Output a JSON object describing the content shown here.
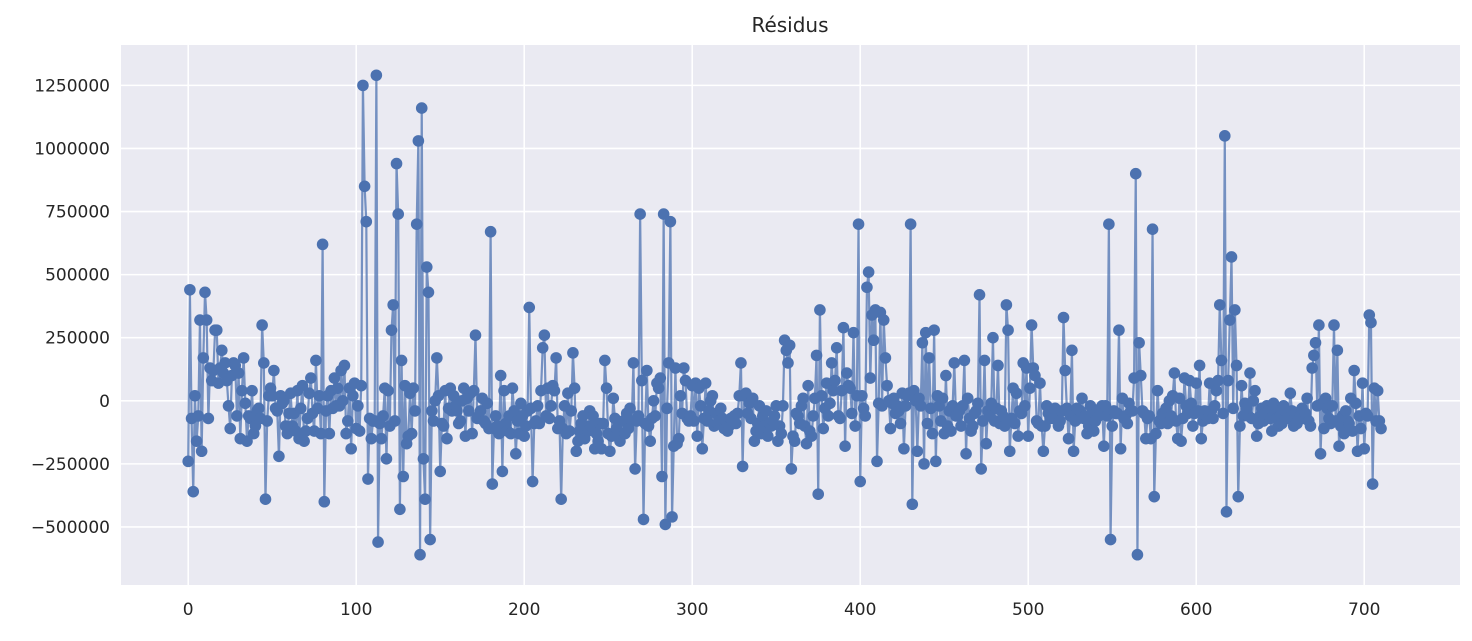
{
  "chart_data": {
    "type": "line",
    "title": "Résidus",
    "xlabel": "",
    "ylabel": "",
    "xlim": [
      -40,
      757
    ],
    "ylim": [
      -730000,
      1410000
    ],
    "grid": true,
    "legend": "none",
    "background_color": "#EAEAF2",
    "grid_color": "#FFFFFF",
    "line_color": "#4C72B0",
    "x_ticks": [
      0,
      100,
      200,
      300,
      400,
      500,
      600,
      700
    ],
    "x_tick_labels": [
      "0",
      "100",
      "200",
      "300",
      "400",
      "500",
      "600",
      "700"
    ],
    "y_ticks": [
      -500000,
      -250000,
      0,
      250000,
      500000,
      750000,
      1000000,
      1250000
    ],
    "y_tick_labels": [
      "−500000",
      "−250000",
      "0",
      "250000",
      "500000",
      "750000",
      "1000000",
      "1250000"
    ],
    "series": [
      {
        "marker": "circle",
        "x_start": 0,
        "x_step": 1,
        "values": [
          -240000,
          440000,
          -70000,
          -360000,
          20000,
          -160000,
          -60000,
          320000,
          -200000,
          170000,
          430000,
          320000,
          -70000,
          130000,
          80000,
          120000,
          280000,
          280000,
          70000,
          130000,
          200000,
          110000,
          150000,
          80000,
          -20000,
          -110000,
          100000,
          150000,
          140000,
          -60000,
          110000,
          -150000,
          40000,
          170000,
          -10000,
          -160000,
          -60000,
          -70000,
          40000,
          -130000,
          -100000,
          -40000,
          -30000,
          -70000,
          300000,
          150000,
          -390000,
          -80000,
          20000,
          50000,
          20000,
          120000,
          -30000,
          -40000,
          -220000,
          20000,
          -10000,
          0,
          -100000,
          -130000,
          -50000,
          30000,
          -100000,
          -50000,
          -120000,
          40000,
          -150000,
          -30000,
          60000,
          -160000,
          -120000,
          -70000,
          30000,
          90000,
          -50000,
          -120000,
          160000,
          -30000,
          20000,
          -130000,
          620000,
          -400000,
          -40000,
          20000,
          -130000,
          40000,
          -30000,
          90000,
          -20000,
          50000,
          -20000,
          120000,
          0,
          140000,
          -130000,
          -80000,
          50000,
          -190000,
          20000,
          70000,
          -110000,
          -20000,
          -120000,
          60000,
          1250000,
          850000,
          710000,
          -310000,
          -70000,
          -150000,
          -80000,
          -80000,
          1290000,
          -560000,
          -90000,
          -150000,
          -60000,
          50000,
          -230000,
          40000,
          -100000,
          280000,
          380000,
          -80000,
          940000,
          740000,
          -430000,
          160000,
          -300000,
          60000,
          -170000,
          -140000,
          30000,
          -130000,
          50000,
          -40000,
          700000,
          1030000,
          -610000,
          1160000,
          -230000,
          -390000,
          530000,
          430000,
          -550000,
          -40000,
          -80000,
          0,
          170000,
          20000,
          -280000,
          -90000,
          -100000,
          40000,
          -150000,
          -30000,
          50000,
          -40000,
          20000,
          -20000,
          -40000,
          -90000,
          -80000,
          0,
          50000,
          -140000,
          10000,
          -40000,
          30000,
          -130000,
          40000,
          260000,
          -70000,
          -60000,
          -40000,
          10000,
          -80000,
          -90000,
          -10000,
          -110000,
          670000,
          -330000,
          -110000,
          -60000,
          -100000,
          -130000,
          100000,
          -280000,
          40000,
          -90000,
          -120000,
          -60000,
          -130000,
          50000,
          -40000,
          -210000,
          -80000,
          -130000,
          -10000,
          -60000,
          -140000,
          -100000,
          -40000,
          370000,
          -30000,
          -320000,
          -90000,
          -80000,
          -20000,
          -90000,
          40000,
          210000,
          260000,
          -60000,
          50000,
          -70000,
          -20000,
          60000,
          40000,
          170000,
          -110000,
          -80000,
          -390000,
          -110000,
          -20000,
          -130000,
          30000,
          -120000,
          -40000,
          190000,
          50000,
          -200000,
          -160000,
          -120000,
          -90000,
          -60000,
          -150000,
          -100000,
          -120000,
          -40000,
          -100000,
          -60000,
          -190000,
          -130000,
          -160000,
          -90000,
          -190000,
          -90000,
          160000,
          50000,
          -130000,
          -200000,
          -140000,
          10000,
          -70000,
          -110000,
          -130000,
          -160000,
          -130000,
          -80000,
          -130000,
          -50000,
          -110000,
          -30000,
          -80000,
          150000,
          -270000,
          -80000,
          -60000,
          740000,
          80000,
          -470000,
          -90000,
          120000,
          -100000,
          -160000,
          -70000,
          0,
          -60000,
          70000,
          50000,
          90000,
          -300000,
          740000,
          -490000,
          -30000,
          150000,
          710000,
          -460000,
          -180000,
          130000,
          -170000,
          -150000,
          20000,
          -50000,
          130000,
          80000,
          -70000,
          -80000,
          -60000,
          60000,
          -80000,
          70000,
          -140000,
          50000,
          -20000,
          -190000,
          -70000,
          70000,
          -80000,
          -40000,
          0,
          20000,
          -100000,
          -50000,
          -90000,
          -80000,
          -30000,
          -70000,
          -110000,
          -80000,
          -120000,
          -100000,
          -70000,
          -80000,
          -60000,
          -90000,
          -50000,
          20000,
          150000,
          -260000,
          20000,
          30000,
          -50000,
          -10000,
          -70000,
          10000,
          -160000,
          -120000,
          -90000,
          -20000,
          -130000,
          -60000,
          -100000,
          -40000,
          -140000,
          -90000,
          -100000,
          -80000,
          -60000,
          -20000,
          -160000,
          -100000,
          -130000,
          -20000,
          240000,
          200000,
          150000,
          220000,
          -270000,
          -140000,
          -160000,
          -50000,
          -60000,
          -90000,
          -20000,
          10000,
          -100000,
          -170000,
          60000,
          -120000,
          -140000,
          -60000,
          10000,
          180000,
          -370000,
          360000,
          20000,
          -110000,
          -30000,
          70000,
          -60000,
          -10000,
          150000,
          40000,
          80000,
          210000,
          -60000,
          -70000,
          40000,
          290000,
          -180000,
          110000,
          60000,
          50000,
          -50000,
          270000,
          -100000,
          20000,
          700000,
          -320000,
          20000,
          -30000,
          -60000,
          450000,
          510000,
          90000,
          340000,
          240000,
          360000,
          -240000,
          -10000,
          350000,
          -20000,
          320000,
          170000,
          60000,
          0,
          -110000,
          -10000,
          10000,
          -50000,
          -20000,
          -40000,
          -90000,
          30000,
          -190000,
          -20000,
          20000,
          30000,
          700000,
          -410000,
          40000,
          0,
          -200000,
          10000,
          -20000,
          230000,
          -250000,
          270000,
          -90000,
          170000,
          -30000,
          -130000,
          280000,
          -240000,
          20000,
          -20000,
          -80000,
          10000,
          -130000,
          100000,
          -100000,
          -40000,
          -120000,
          -20000,
          150000,
          -60000,
          -60000,
          -40000,
          -100000,
          -20000,
          160000,
          -210000,
          10000,
          -70000,
          -120000,
          -100000,
          -50000,
          -40000,
          -10000,
          420000,
          -270000,
          -80000,
          160000,
          -170000,
          -40000,
          -60000,
          -10000,
          250000,
          -80000,
          -30000,
          140000,
          -90000,
          -40000,
          -60000,
          -100000,
          380000,
          280000,
          -200000,
          -70000,
          50000,
          -90000,
          30000,
          -140000,
          -40000,
          -50000,
          150000,
          -20000,
          130000,
          -140000,
          50000,
          300000,
          130000,
          100000,
          -80000,
          -90000,
          70000,
          -100000,
          -200000,
          -100000,
          -20000,
          -50000,
          -70000,
          -50000,
          -70000,
          -30000,
          -50000,
          -100000,
          -80000,
          -40000,
          330000,
          120000,
          -30000,
          -150000,
          -60000,
          200000,
          -200000,
          -80000,
          -30000,
          -70000,
          -40000,
          10000,
          -70000,
          -60000,
          -130000,
          -100000,
          -20000,
          -60000,
          -120000,
          -80000,
          -40000,
          -60000,
          -30000,
          -20000,
          -180000,
          -20000,
          -60000,
          700000,
          -550000,
          -100000,
          -40000,
          -50000,
          -50000,
          280000,
          -190000,
          10000,
          -70000,
          -60000,
          -90000,
          -10000,
          -40000,
          -40000,
          90000,
          900000,
          -610000,
          230000,
          100000,
          -40000,
          -50000,
          -150000,
          -70000,
          -60000,
          -150000,
          680000,
          -380000,
          -130000,
          40000,
          -80000,
          -90000,
          -50000,
          -60000,
          -30000,
          -90000,
          0,
          -60000,
          20000,
          110000,
          -80000,
          -150000,
          10000,
          -160000,
          -70000,
          90000,
          -20000,
          -50000,
          80000,
          -10000,
          -100000,
          -50000,
          70000,
          -40000,
          140000,
          -150000,
          -80000,
          -40000,
          -60000,
          -70000,
          70000,
          -40000,
          -70000,
          -20000,
          40000,
          80000,
          380000,
          160000,
          -50000,
          1050000,
          -440000,
          80000,
          320000,
          570000,
          -30000,
          360000,
          140000,
          -380000,
          -100000,
          60000,
          -60000,
          -10000,
          -30000,
          -60000,
          110000,
          -70000,
          0,
          40000,
          -140000,
          -90000,
          -60000,
          -30000,
          -80000,
          -50000,
          -20000,
          -40000,
          -70000,
          -120000,
          -10000,
          -40000,
          -70000,
          -100000,
          -60000,
          -90000,
          -20000,
          -40000,
          -70000,
          -60000,
          30000,
          -40000,
          -100000,
          -50000,
          -90000,
          -70000,
          -60000,
          -30000,
          -70000,
          -50000,
          10000,
          -80000,
          -100000,
          130000,
          180000,
          230000,
          -20000,
          300000,
          -210000,
          -10000,
          -110000,
          10000,
          -30000,
          -70000,
          -90000,
          -20000,
          300000,
          -80000,
          200000,
          -180000,
          -100000,
          -60000,
          -130000,
          -40000,
          -80000,
          -90000,
          10000,
          -120000,
          120000,
          -10000,
          -200000,
          -60000,
          -110000,
          70000,
          -190000,
          -50000,
          -60000,
          340000,
          310000,
          -330000,
          50000,
          -80000,
          40000,
          -80000,
          -110000
        ]
      }
    ]
  }
}
